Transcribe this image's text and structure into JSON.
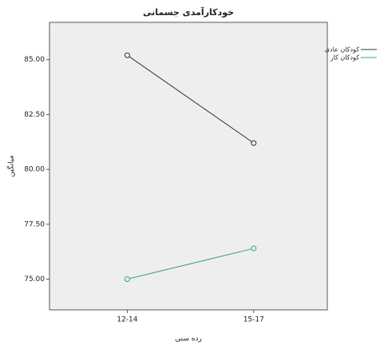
{
  "chart_data": {
    "type": "line",
    "title": "خودکارآمدی جسمانی",
    "x_label": "رده سنی",
    "y_label": "میانگین",
    "categories": [
      "12-14",
      "15-17"
    ],
    "series": [
      {
        "name": "کودکان عادی",
        "color": "#333333",
        "values": [
          85.2,
          81.2
        ]
      },
      {
        "name": "کودکان کار",
        "color": "#3a9e8c",
        "values": [
          75.0,
          76.4
        ]
      }
    ],
    "ylim": [
      73.6,
      86.7
    ],
    "yticks": [
      {
        "value": 75,
        "label": "75.00"
      },
      {
        "value": 77.5,
        "label": "77.50"
      },
      {
        "value": 80,
        "label": "80.00"
      },
      {
        "value": 82.5,
        "label": "82.50"
      },
      {
        "value": 85,
        "label": "85.00"
      }
    ],
    "legend": "right"
  }
}
